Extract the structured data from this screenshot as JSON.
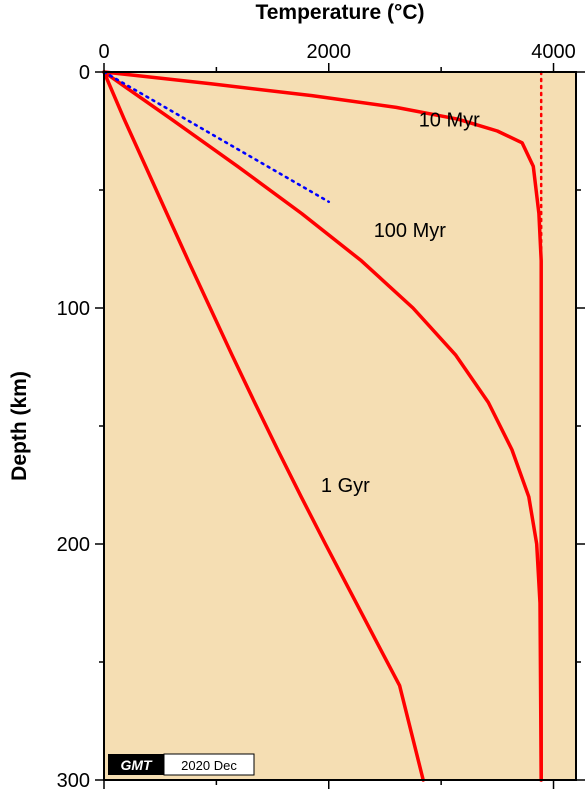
{
  "chart_data": {
    "type": "line",
    "title": "",
    "xlabel": "Temperature (°C)",
    "ylabel": "Depth (km)",
    "xlim": [
      0,
      4200
    ],
    "ylim": [
      0,
      300
    ],
    "y_inverted": true,
    "x_ticks": [
      0,
      2000,
      4000
    ],
    "y_ticks": [
      0,
      100,
      200,
      300
    ],
    "x_axis_position": "top",
    "grid": false,
    "background_color": "#f5deb3",
    "line_color": "#ff0000",
    "dotted_line_color": "#0000ff",
    "series": [
      {
        "label": "10 Myr",
        "style": "solid",
        "x": [
          0,
          950,
          1850,
          2600,
          3150,
          3500,
          3720,
          3820,
          3870,
          3890,
          3890,
          3890,
          3890
        ],
        "y": [
          0,
          5,
          10,
          15,
          20,
          25,
          30,
          40,
          60,
          80,
          100,
          200,
          300
        ]
      },
      {
        "label": "100 Myr",
        "style": "solid",
        "x": [
          0,
          600,
          1190,
          1760,
          2290,
          2750,
          3130,
          3420,
          3630,
          3780,
          3850,
          3880,
          3890
        ],
        "y": [
          0,
          20,
          40,
          60,
          80,
          100,
          120,
          140,
          160,
          180,
          200,
          225,
          300
        ]
      },
      {
        "label": "1 Gyr",
        "style": "solid",
        "x": [
          0,
          180,
          370,
          560,
          750,
          945,
          1140,
          1340,
          1545,
          1755,
          1970,
          2190,
          2410,
          2630,
          2840
        ],
        "y": [
          0,
          20,
          40,
          60,
          80,
          100,
          120,
          140,
          160,
          180,
          200,
          220,
          240,
          260,
          300
        ]
      },
      {
        "label": "",
        "style": "dotted-vertical",
        "x": [
          3890,
          3890
        ],
        "y": [
          0,
          80
        ]
      },
      {
        "label": "",
        "style": "dotted-blue",
        "x": [
          0,
          2000
        ],
        "y": [
          0,
          55
        ]
      }
    ],
    "curve_label_positions": [
      {
        "text": "10 Myr",
        "x": 2800,
        "y": 23
      },
      {
        "text": "100 Myr",
        "x": 2400,
        "y": 70
      },
      {
        "text": "1 Gyr",
        "x": 1930,
        "y": 178
      }
    ]
  },
  "stamp": {
    "logo": "GMT",
    "date": "2020 Dec"
  }
}
